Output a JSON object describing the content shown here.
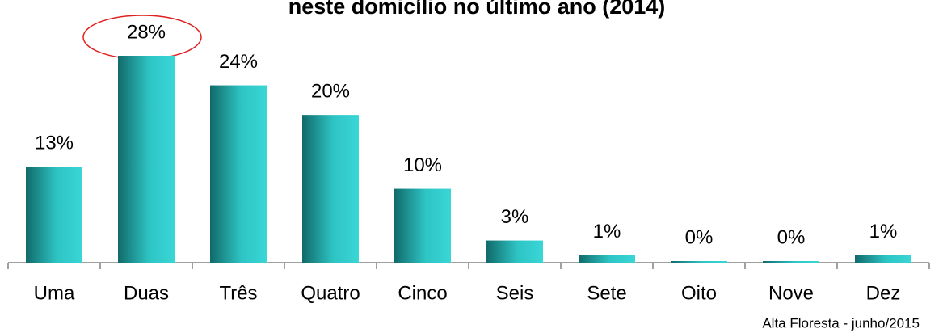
{
  "chart_data": {
    "type": "bar",
    "title": "neste domicílio no último ano (2014)",
    "categories": [
      "Uma",
      "Duas",
      "Três",
      "Quatro",
      "Cinco",
      "Seis",
      "Sete",
      "Oito",
      "Nove",
      "Dez"
    ],
    "values": [
      13,
      28,
      24,
      20,
      10,
      3,
      1,
      0,
      0,
      1
    ],
    "value_labels": [
      "13%",
      "28%",
      "24%",
      "20%",
      "10%",
      "3%",
      "1%",
      "0%",
      "0%",
      "1%"
    ],
    "color": "#2ec4c4",
    "note": "Alta Floresta -  junho/2015"
  }
}
